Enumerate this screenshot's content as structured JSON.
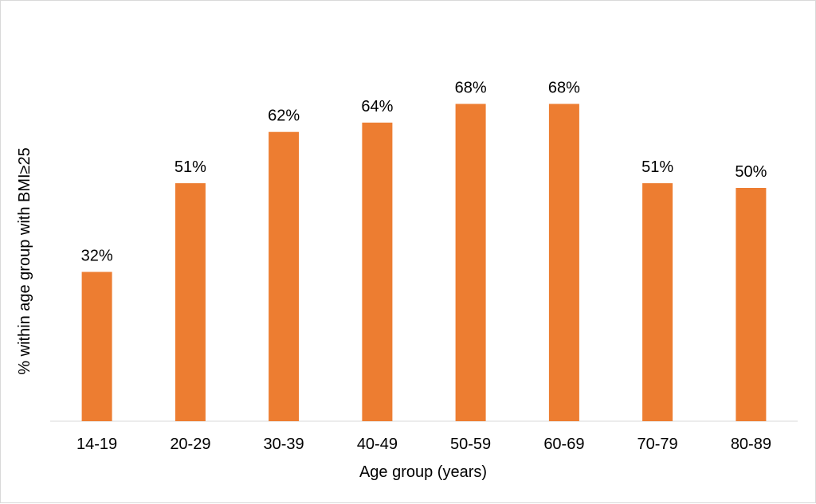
{
  "chart_data": {
    "type": "bar",
    "categories": [
      "14-19",
      "20-29",
      "30-39",
      "40-49",
      "50-59",
      "60-69",
      "70-79",
      "80-89"
    ],
    "values": [
      32,
      51,
      62,
      64,
      68,
      68,
      51,
      50
    ],
    "data_labels": [
      "32%",
      "51%",
      "62%",
      "64%",
      "68%",
      "68%",
      "51%",
      "50%"
    ],
    "xlabel": "Age group (years)",
    "ylabel": "% within age group with BMI≥25",
    "ylim": [
      0,
      80
    ],
    "grid": false,
    "bar_color": "#ED7D31"
  }
}
